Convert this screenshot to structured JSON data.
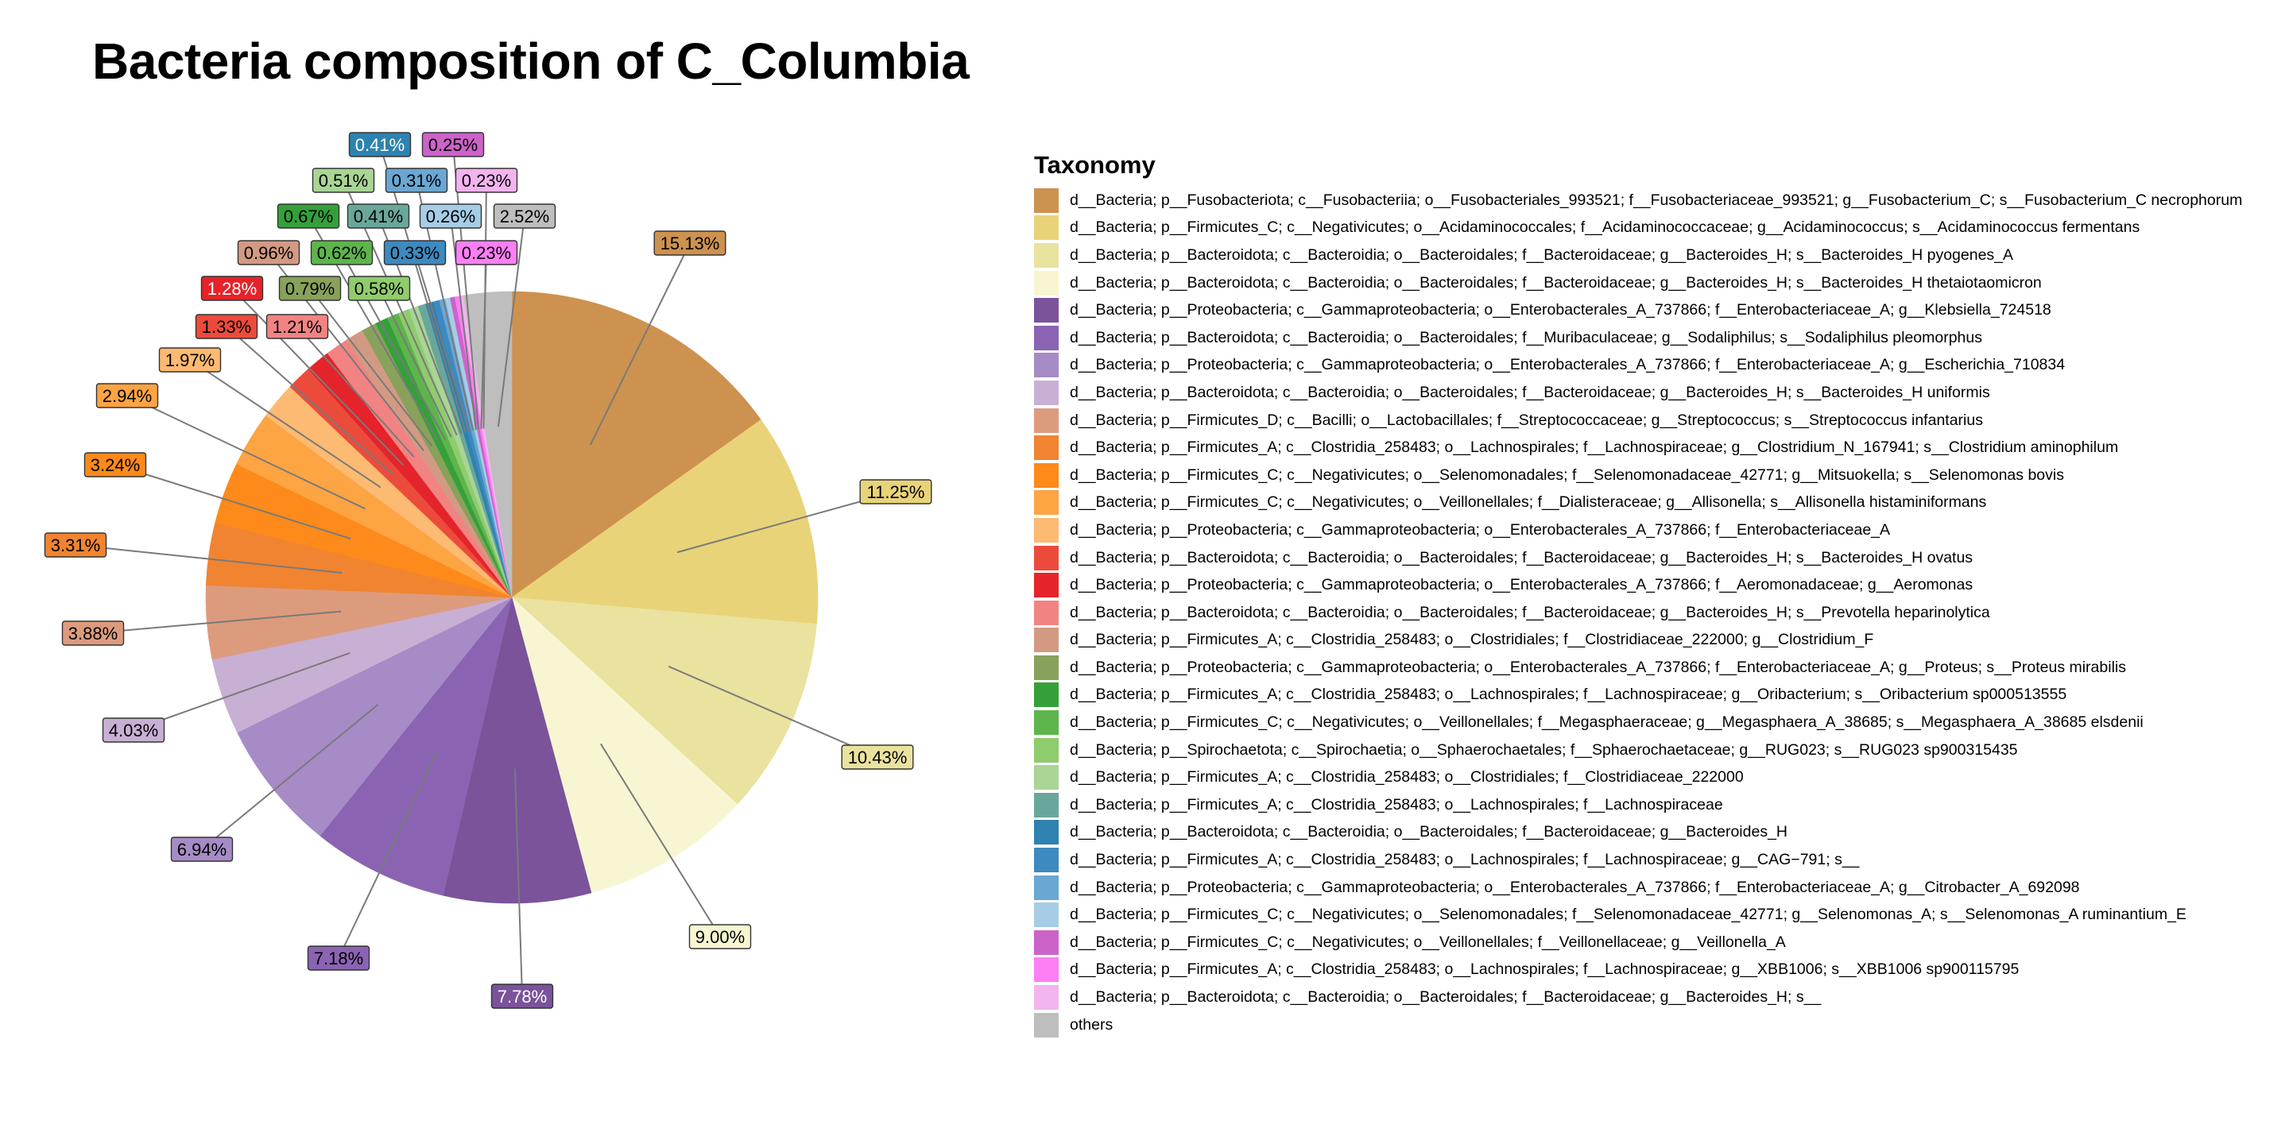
{
  "chart_data": {
    "type": "pie",
    "title": "Bacteria composition of C_Columbia",
    "legend_title": "Taxonomy",
    "legend_position": "right",
    "start_angle_deg": 0,
    "direction": "clockwise",
    "slices": [
      {
        "label": "d__Bacteria; p__Fusobacteriota; c__Fusobacteriia; o__Fusobacteriales_993521; f__Fusobacteriaceae_993521; g__Fusobacterium_C; s__Fusobacterium_C necrophorum",
        "value": 15.13,
        "value_label": "15.13%",
        "color": "#CD924F"
      },
      {
        "label": "d__Bacteria; p__Firmicutes_C; c__Negativicutes; o__Acidaminococcales; f__Acidaminococcaceae; g__Acidaminococcus; s__Acidaminococcus fermentans",
        "value": 11.25,
        "value_label": "11.25%",
        "color": "#E9D379"
      },
      {
        "label": "d__Bacteria; p__Bacteroidota; c__Bacteroidia; o__Bacteroidales; f__Bacteroidaceae; g__Bacteroides_H; s__Bacteroides_H pyogenes_A",
        "value": 10.43,
        "value_label": "10.43%",
        "color": "#EAE29F"
      },
      {
        "label": "d__Bacteria; p__Bacteroidota; c__Bacteroidia; o__Bacteroidales; f__Bacteroidaceae; g__Bacteroides_H; s__Bacteroides_H thetaiotaomicron",
        "value": 9.0,
        "value_label": "9.00%",
        "color": "#F8F6D2"
      },
      {
        "label": "d__Bacteria; p__Proteobacteria; c__Gammaproteobacteria; o__Enterobacterales_A_737866; f__Enterobacteriaceae_A; g__Klebsiella_724518",
        "value": 7.78,
        "value_label": "7.78%",
        "color": "#7A539B"
      },
      {
        "label": "d__Bacteria; p__Bacteroidota; c__Bacteroidia; o__Bacteroidales; f__Muribaculaceae; g__Sodaliphilus; s__Sodaliphilus pleomorphus",
        "value": 7.18,
        "value_label": "7.18%",
        "color": "#8A64B2"
      },
      {
        "label": "d__Bacteria; p__Proteobacteria; c__Gammaproteobacteria; o__Enterobacterales_A_737866; f__Enterobacteriaceae_A; g__Escherichia_710834",
        "value": 6.94,
        "value_label": "6.94%",
        "color": "#A68BC6"
      },
      {
        "label": "d__Bacteria; p__Bacteroidota; c__Bacteroidia; o__Bacteroidales; f__Bacteroidaceae; g__Bacteroides_H; s__Bacteroides_H uniformis",
        "value": 4.03,
        "value_label": "4.03%",
        "color": "#C8AFD4"
      },
      {
        "label": "d__Bacteria; p__Firmicutes_D; c__Bacilli; o__Lactobacillales; f__Streptococcaceae; g__Streptococcus; s__Streptococcus infantarius",
        "value": 3.88,
        "value_label": "3.88%",
        "color": "#DD9B7E"
      },
      {
        "label": "d__Bacteria; p__Firmicutes_A; c__Clostridia_258483; o__Lachnospirales; f__Lachnospiraceae; g__Clostridium_N_167941; s__Clostridium aminophilum",
        "value": 3.31,
        "value_label": "3.31%",
        "color": "#F08431"
      },
      {
        "label": "d__Bacteria; p__Firmicutes_C; c__Negativicutes; o__Selenomonadales; f__Selenomonadaceae_42771; g__Mitsuokella; s__Selenomonas bovis",
        "value": 3.24,
        "value_label": "3.24%",
        "color": "#FD8A1A"
      },
      {
        "label": "d__Bacteria; p__Firmicutes_C; c__Negativicutes; o__Veillonellales; f__Dialisteraceae; g__Allisonella; s__Allisonella histaminiformans",
        "value": 2.94,
        "value_label": "2.94%",
        "color": "#FDA443"
      },
      {
        "label": "d__Bacteria; p__Proteobacteria; c__Gammaproteobacteria; o__Enterobacterales_A_737866; f__Enterobacteriaceae_A",
        "value": 1.97,
        "value_label": "1.97%",
        "color": "#FDBA72"
      },
      {
        "label": "d__Bacteria; p__Bacteroidota; c__Bacteroidia; o__Bacteroidales; f__Bacteroidaceae; g__Bacteroides_H; s__Bacteroides_H ovatus",
        "value": 1.33,
        "value_label": "1.33%",
        "color": "#EC4B3B"
      },
      {
        "label": "d__Bacteria; p__Proteobacteria; c__Gammaproteobacteria; o__Enterobacterales_A_737866; f__Aeromonadaceae; g__Aeromonas",
        "value": 1.28,
        "value_label": "1.28%",
        "color": "#E4242A"
      },
      {
        "label": "d__Bacteria; p__Bacteroidota; c__Bacteroidia; o__Bacteroidales; f__Bacteroidaceae; g__Bacteroides_H; s__Prevotella heparinolytica",
        "value": 1.21,
        "value_label": "1.21%",
        "color": "#F28383"
      },
      {
        "label": "d__Bacteria; p__Firmicutes_A; c__Clostridia_258483; o__Clostridiales; f__Clostridiaceae_222000; g__Clostridium_F",
        "value": 0.96,
        "value_label": "0.96%",
        "color": "#D39A83"
      },
      {
        "label": "d__Bacteria; p__Proteobacteria; c__Gammaproteobacteria; o__Enterobacterales_A_737866; f__Enterobacteriaceae_A; g__Proteus; s__Proteus mirabilis",
        "value": 0.79,
        "value_label": "0.79%",
        "color": "#88A15B"
      },
      {
        "label": "d__Bacteria; p__Firmicutes_A; c__Clostridia_258483; o__Lachnospirales; f__Lachnospiraceae; g__Oribacterium; s__Oribacterium sp000513555",
        "value": 0.67,
        "value_label": "0.67%",
        "color": "#35A03A"
      },
      {
        "label": "d__Bacteria; p__Firmicutes_C; c__Negativicutes; o__Veillonellales; f__Megasphaeraceae; g__Megasphaera_A_38685; s__Megasphaera_A_38685 elsdenii",
        "value": 0.62,
        "value_label": "0.62%",
        "color": "#5DB54C"
      },
      {
        "label": "d__Bacteria; p__Spirochaetota; c__Spirochaetia; o__Sphaerochaetales; f__Sphaerochaetaceae; g__RUG023; s__RUG023 sp900315435",
        "value": 0.58,
        "value_label": "0.58%",
        "color": "#8FCC6E"
      },
      {
        "label": "d__Bacteria; p__Firmicutes_A; c__Clostridia_258483; o__Clostridiales; f__Clostridiaceae_222000",
        "value": 0.51,
        "value_label": "0.51%",
        "color": "#A9D595"
      },
      {
        "label": "d__Bacteria; p__Firmicutes_A; c__Clostridia_258483; o__Lachnospirales; f__Lachnospiraceae",
        "value": 0.41,
        "value_label": "0.41%",
        "color": "#6AA79B"
      },
      {
        "label": "d__Bacteria; p__Bacteroidota; c__Bacteroidia; o__Bacteroidales; f__Bacteroidaceae; g__Bacteroides_H",
        "value": 0.41,
        "value_label": "0.41%",
        "color": "#2E82B0"
      },
      {
        "label": "d__Bacteria; p__Firmicutes_A; c__Clostridia_258483; o__Lachnospirales; f__Lachnospiraceae; g__CAG−791; s__",
        "value": 0.33,
        "value_label": "0.33%",
        "color": "#3D8AC0"
      },
      {
        "label": "d__Bacteria; p__Proteobacteria; c__Gammaproteobacteria; o__Enterobacterales_A_737866; f__Enterobacteriaceae_A; g__Citrobacter_A_692098",
        "value": 0.31,
        "value_label": "0.31%",
        "color": "#6AA7D2"
      },
      {
        "label": "d__Bacteria; p__Firmicutes_C; c__Negativicutes; o__Selenomonadales; f__Selenomonadaceae_42771; g__Selenomonas_A; s__Selenomonas_A ruminantium_E",
        "value": 0.26,
        "value_label": "0.26%",
        "color": "#A6CDE5"
      },
      {
        "label": "d__Bacteria; p__Firmicutes_C; c__Negativicutes; o__Veillonellales; f__Veillonellaceae; g__Veillonella_A",
        "value": 0.25,
        "value_label": "0.25%",
        "color": "#CC63C9"
      },
      {
        "label": "d__Bacteria; p__Firmicutes_A; c__Clostridia_258483; o__Lachnospirales; f__Lachnospiraceae; g__XBB1006; s__XBB1006 sp900115795",
        "value": 0.23,
        "value_label": "0.23%",
        "color": "#FC7FF4"
      },
      {
        "label": "d__Bacteria; p__Bacteroidota; c__Bacteroidia; o__Bacteroidales; f__Bacteroidaceae; g__Bacteroides_H; s__",
        "value": 0.23,
        "value_label": "0.23%",
        "color": "#F2B4EE"
      },
      {
        "label": "others",
        "value": 2.52,
        "value_label": "2.52%",
        "color": "#BEBEBE"
      }
    ]
  }
}
